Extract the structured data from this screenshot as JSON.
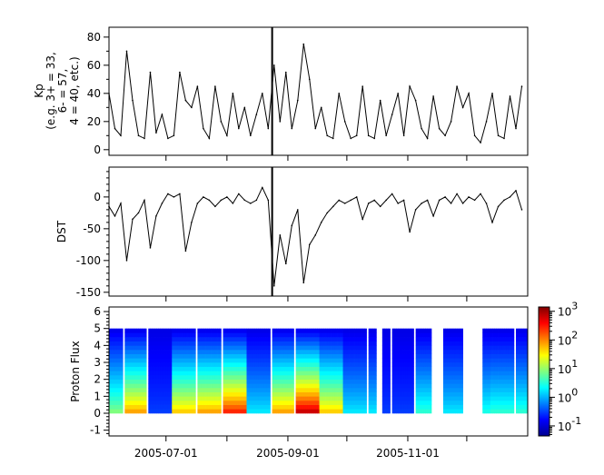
{
  "chart_data": [
    {
      "type": "line",
      "ylabel_lines": [
        "Kp",
        "(e.g. 3+ = 33,",
        "6- = 57,",
        "4 = 40, etc.)"
      ],
      "ylim": [
        -4,
        87
      ],
      "yticks": [
        0,
        20,
        40,
        60,
        80
      ],
      "xlim": [
        "2005-06-02",
        "2006-01-01"
      ],
      "marker_date": "2005-08-24",
      "x": [
        "2005-06-02",
        "2005-06-05",
        "2005-06-08",
        "2005-06-11",
        "2005-06-14",
        "2005-06-17",
        "2005-06-20",
        "2005-06-23",
        "2005-06-26",
        "2005-06-29",
        "2005-07-02",
        "2005-07-05",
        "2005-07-08",
        "2005-07-11",
        "2005-07-14",
        "2005-07-17",
        "2005-07-20",
        "2005-07-23",
        "2005-07-26",
        "2005-07-29",
        "2005-08-01",
        "2005-08-04",
        "2005-08-07",
        "2005-08-10",
        "2005-08-13",
        "2005-08-16",
        "2005-08-19",
        "2005-08-22",
        "2005-08-25",
        "2005-08-28",
        "2005-08-31",
        "2005-09-03",
        "2005-09-06",
        "2005-09-09",
        "2005-09-12",
        "2005-09-15",
        "2005-09-18",
        "2005-09-21",
        "2005-09-24",
        "2005-09-27",
        "2005-09-30",
        "2005-10-03",
        "2005-10-06",
        "2005-10-09",
        "2005-10-12",
        "2005-10-15",
        "2005-10-18",
        "2005-10-21",
        "2005-10-24",
        "2005-10-27",
        "2005-10-30",
        "2005-11-02",
        "2005-11-05",
        "2005-11-08",
        "2005-11-11",
        "2005-11-14",
        "2005-11-17",
        "2005-11-20",
        "2005-11-23",
        "2005-11-26",
        "2005-11-29",
        "2005-12-02",
        "2005-12-05",
        "2005-12-08",
        "2005-12-11",
        "2005-12-14",
        "2005-12-17",
        "2005-12-20",
        "2005-12-23",
        "2005-12-26",
        "2005-12-29"
      ],
      "values": [
        40,
        15,
        10,
        70,
        35,
        10,
        8,
        55,
        12,
        25,
        8,
        10,
        55,
        35,
        30,
        45,
        15,
        8,
        45,
        20,
        10,
        40,
        15,
        30,
        10,
        25,
        40,
        15,
        60,
        20,
        55,
        15,
        35,
        75,
        50,
        15,
        30,
        10,
        8,
        40,
        20,
        8,
        10,
        45,
        10,
        8,
        35,
        10,
        25,
        40,
        10,
        45,
        35,
        15,
        8,
        38,
        15,
        10,
        20,
        45,
        30,
        40,
        10,
        5,
        20,
        40,
        10,
        8,
        38,
        15,
        45
      ]
    },
    {
      "type": "line",
      "ylabel": "DST",
      "ylim": [
        -156,
        47
      ],
      "yticks": [
        0,
        -50,
        -100,
        -150
      ],
      "xlim": [
        "2005-06-02",
        "2006-01-01"
      ],
      "marker_date": "2005-08-24",
      "values": [
        -15,
        -30,
        -10,
        -100,
        -35,
        -25,
        -5,
        -80,
        -30,
        -10,
        5,
        0,
        5,
        -85,
        -40,
        -10,
        0,
        -5,
        -15,
        -5,
        0,
        -10,
        5,
        -5,
        -10,
        -5,
        15,
        -5,
        -140,
        -60,
        -105,
        -45,
        -20,
        -135,
        -75,
        -60,
        -40,
        -25,
        -15,
        -5,
        -10,
        -5,
        0,
        -35,
        -10,
        -5,
        -15,
        -5,
        5,
        -10,
        -5,
        -55,
        -20,
        -10,
        -5,
        -30,
        -5,
        0,
        -10,
        5,
        -10,
        0,
        -5,
        5,
        -10,
        -40,
        -15,
        -5,
        0,
        10,
        -20
      ]
    },
    {
      "type": "heatmap",
      "ylabel": "Proton Flux",
      "ylim": [
        -1.34,
        6.27
      ],
      "yticks": [
        -1,
        0,
        1,
        2,
        3,
        4,
        5,
        6
      ],
      "y_range_data": [
        0,
        5
      ],
      "xlim": [
        "2005-06-02",
        "2006-01-01"
      ],
      "xticks": [
        "2005-07-01",
        "2005-09-01",
        "2005-11-01"
      ],
      "xticks_minor": [
        "2005-08-01",
        "2005-10-01",
        "2005-12-01"
      ],
      "colorscale": "jet",
      "zscale": "log",
      "zlim_log10": [
        -1.35,
        3.15
      ],
      "colorbar_ticks": [
        {
          "base": "10",
          "exp": "3"
        },
        {
          "base": "10",
          "exp": "2"
        },
        {
          "base": "10",
          "exp": "1"
        },
        {
          "base": "10",
          "exp": "0"
        },
        {
          "base": "10",
          "exp": "-1"
        }
      ],
      "colorbar_tick_values": [
        3,
        2,
        1,
        0,
        -1
      ],
      "segments": [
        {
          "start": "2005-06-02",
          "end": "2005-06-08",
          "peak_log10_flux": 1.0
        },
        {
          "start": "2005-06-10",
          "end": "2005-06-20",
          "peak_log10_flux": 2.0
        },
        {
          "start": "2005-06-22",
          "end": "2005-06-28",
          "peak_log10_flux": -0.5
        },
        {
          "start": "2005-06-29",
          "end": "2005-07-03",
          "peak_log10_flux": -0.5
        },
        {
          "start": "2005-07-04",
          "end": "2005-07-15",
          "peak_log10_flux": 1.8
        },
        {
          "start": "2005-07-17",
          "end": "2005-07-28",
          "peak_log10_flux": 2.0
        },
        {
          "start": "2005-07-30",
          "end": "2005-08-10",
          "peak_log10_flux": 2.6
        },
        {
          "start": "2005-08-11",
          "end": "2005-08-22",
          "peak_log10_flux": 0.3
        },
        {
          "start": "2005-08-24",
          "end": "2005-09-03",
          "peak_log10_flux": 2.0
        },
        {
          "start": "2005-09-05",
          "end": "2005-09-16",
          "peak_log10_flux": 3.0
        },
        {
          "start": "2005-09-17",
          "end": "2005-09-28",
          "peak_log10_flux": 1.8
        },
        {
          "start": "2005-09-29",
          "end": "2005-10-10",
          "peak_log10_flux": 0.3
        },
        {
          "start": "2005-10-12",
          "end": "2005-10-15",
          "peak_log10_flux": 0.3
        },
        {
          "start": "2005-10-19",
          "end": "2005-10-22",
          "peak_log10_flux": -0.5
        },
        {
          "start": "2005-10-24",
          "end": "2005-11-03",
          "peak_log10_flux": -0.5
        },
        {
          "start": "2005-11-05",
          "end": "2005-11-12",
          "peak_log10_flux": 0.6
        },
        {
          "start": "2005-11-19",
          "end": "2005-11-28",
          "peak_log10_flux": 0.3
        },
        {
          "start": "2005-12-09",
          "end": "2005-12-12",
          "peak_log10_flux": 0.5
        },
        {
          "start": "2005-12-13",
          "end": "2005-12-24",
          "peak_log10_flux": 0.6
        },
        {
          "start": "2005-12-26",
          "end": "2005-12-31",
          "peak_log10_flux": 0.6
        }
      ]
    }
  ]
}
